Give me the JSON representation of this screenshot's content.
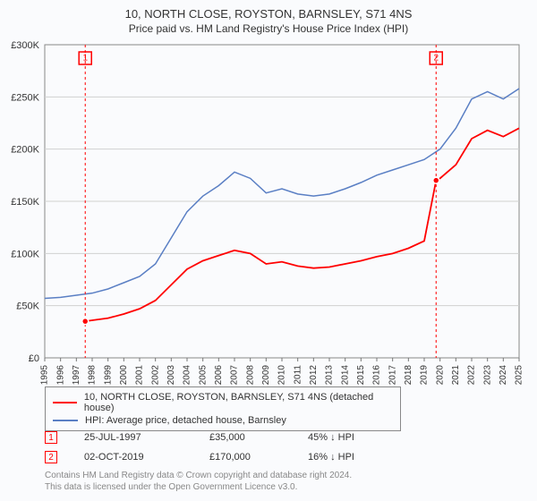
{
  "title": {
    "line1": "10, NORTH CLOSE, ROYSTON, BARNSLEY, S71 4NS",
    "line2": "Price paid vs. HM Land Registry's House Price Index (HPI)"
  },
  "chart": {
    "background": "#fafbfd",
    "border_color": "#888888",
    "grid_color": "#d0d0d0",
    "y": {
      "min": 0,
      "max": 300000,
      "step": 50000,
      "labels": [
        "£0",
        "£50K",
        "£100K",
        "£150K",
        "£200K",
        "£250K",
        "£300K"
      ]
    },
    "x": {
      "min": 1995,
      "max": 2025,
      "years": [
        1995,
        1996,
        1997,
        1998,
        1999,
        2000,
        2001,
        2002,
        2003,
        2004,
        2005,
        2006,
        2007,
        2008,
        2009,
        2010,
        2011,
        2012,
        2013,
        2014,
        2015,
        2016,
        2017,
        2018,
        2019,
        2020,
        2021,
        2022,
        2023,
        2024,
        2025
      ]
    },
    "series_red": {
      "label": "10, NORTH CLOSE, ROYSTON, BARNSLEY, S71 4NS (detached house)",
      "color": "#ff0000",
      "points": [
        [
          1997.56,
          35000
        ],
        [
          1998,
          36000
        ],
        [
          1999,
          38000
        ],
        [
          2000,
          42000
        ],
        [
          2001,
          47000
        ],
        [
          2002,
          55000
        ],
        [
          2003,
          70000
        ],
        [
          2004,
          85000
        ],
        [
          2005,
          93000
        ],
        [
          2006,
          98000
        ],
        [
          2007,
          103000
        ],
        [
          2008,
          100000
        ],
        [
          2009,
          90000
        ],
        [
          2010,
          92000
        ],
        [
          2011,
          88000
        ],
        [
          2012,
          86000
        ],
        [
          2013,
          87000
        ],
        [
          2014,
          90000
        ],
        [
          2015,
          93000
        ],
        [
          2016,
          97000
        ],
        [
          2017,
          100000
        ],
        [
          2018,
          105000
        ],
        [
          2019,
          112000
        ],
        [
          2019.75,
          170000
        ],
        [
          2020,
          172000
        ],
        [
          2021,
          185000
        ],
        [
          2022,
          210000
        ],
        [
          2023,
          218000
        ],
        [
          2024,
          212000
        ],
        [
          2025,
          220000
        ]
      ]
    },
    "series_blue": {
      "label": "HPI: Average price, detached house, Barnsley",
      "color": "#5a7fc4",
      "points": [
        [
          1995,
          57000
        ],
        [
          1996,
          58000
        ],
        [
          1997,
          60000
        ],
        [
          1998,
          62000
        ],
        [
          1999,
          66000
        ],
        [
          2000,
          72000
        ],
        [
          2001,
          78000
        ],
        [
          2002,
          90000
        ],
        [
          2003,
          115000
        ],
        [
          2004,
          140000
        ],
        [
          2005,
          155000
        ],
        [
          2006,
          165000
        ],
        [
          2007,
          178000
        ],
        [
          2008,
          172000
        ],
        [
          2009,
          158000
        ],
        [
          2010,
          162000
        ],
        [
          2011,
          157000
        ],
        [
          2012,
          155000
        ],
        [
          2013,
          157000
        ],
        [
          2014,
          162000
        ],
        [
          2015,
          168000
        ],
        [
          2016,
          175000
        ],
        [
          2017,
          180000
        ],
        [
          2018,
          185000
        ],
        [
          2019,
          190000
        ],
        [
          2020,
          200000
        ],
        [
          2021,
          220000
        ],
        [
          2022,
          248000
        ],
        [
          2023,
          255000
        ],
        [
          2024,
          248000
        ],
        [
          2025,
          258000
        ]
      ]
    },
    "markers": [
      {
        "n": "1",
        "year": 1997.56,
        "price": 35000,
        "color": "#ff0000"
      },
      {
        "n": "2",
        "year": 2019.75,
        "price": 170000,
        "color": "#ff0000"
      }
    ]
  },
  "legend": {
    "items": [
      {
        "color": "#ff0000",
        "label_key": "chart.series_red.label"
      },
      {
        "color": "#5a7fc4",
        "label_key": "chart.series_blue.label"
      }
    ]
  },
  "sales": [
    {
      "n": "1",
      "color": "#ff0000",
      "date": "25-JUL-1997",
      "price": "£35,000",
      "hpi": "45% ↓ HPI"
    },
    {
      "n": "2",
      "color": "#ff0000",
      "date": "02-OCT-2019",
      "price": "£170,000",
      "hpi": "16% ↓ HPI"
    }
  ],
  "footnote": {
    "line1": "Contains HM Land Registry data © Crown copyright and database right 2024.",
    "line2": "This data is licensed under the Open Government Licence v3.0."
  }
}
